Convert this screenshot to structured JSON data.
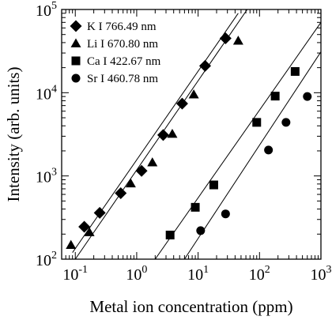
{
  "chart_data": {
    "type": "scatter",
    "title": "",
    "xlabel": "Metal ion concentration (ppm)",
    "ylabel": "Intensity (arb. units)",
    "xscale": "log",
    "yscale": "log",
    "xlim": [
      0.06,
      1000
    ],
    "ylim": [
      100,
      100000
    ],
    "x_ticks": [
      {
        "base": "10",
        "exp": "-1"
      },
      {
        "base": "10",
        "exp": "0"
      },
      {
        "base": "10",
        "exp": "1"
      },
      {
        "base": "10",
        "exp": "2"
      },
      {
        "base": "10",
        "exp": "3"
      }
    ],
    "y_ticks": [
      {
        "base": "10",
        "exp": "2"
      },
      {
        "base": "10",
        "exp": "3"
      },
      {
        "base": "10",
        "exp": "4"
      },
      {
        "base": "10",
        "exp": "5"
      }
    ],
    "legend_position": "top-left",
    "grid": false,
    "series": [
      {
        "name": "K I 766.49 nm",
        "marker": "diamond",
        "points": [
          [
            0.14,
            245
          ],
          [
            0.25,
            360
          ],
          [
            0.55,
            620
          ],
          [
            1.2,
            1150
          ],
          [
            2.7,
            3100
          ],
          [
            5.5,
            7400
          ],
          [
            13,
            21000
          ],
          [
            28,
            45000
          ]
        ],
        "fit": [
          [
            0.09,
            120
          ],
          [
            45,
            90000
          ]
        ]
      },
      {
        "name": "Li I 670.80 nm",
        "marker": "triangle",
        "points": [
          [
            0.085,
            148
          ],
          [
            0.17,
            210
          ],
          [
            0.8,
            810
          ],
          [
            1.8,
            1450
          ],
          [
            3.8,
            3200
          ],
          [
            8.5,
            9500
          ],
          [
            45,
            42000
          ]
        ],
        "fit": [
          [
            0.1,
            100
          ],
          [
            63,
            100000
          ]
        ]
      },
      {
        "name": "Ca I 422.67 nm",
        "marker": "square",
        "points": [
          [
            3.5,
            195
          ],
          [
            9,
            420
          ],
          [
            18,
            780
          ],
          [
            90,
            4400
          ],
          [
            180,
            9100
          ],
          [
            380,
            18000
          ]
        ],
        "fit": [
          [
            2,
            100
          ],
          [
            1000,
            70000
          ]
        ]
      },
      {
        "name": "Sr I 460.78 nm",
        "marker": "circle",
        "points": [
          [
            11,
            220
          ],
          [
            28,
            350
          ],
          [
            140,
            2050
          ],
          [
            270,
            4400
          ],
          [
            600,
            9000
          ]
        ],
        "fit": [
          [
            6,
            100
          ],
          [
            1000,
            31000
          ]
        ]
      }
    ]
  }
}
